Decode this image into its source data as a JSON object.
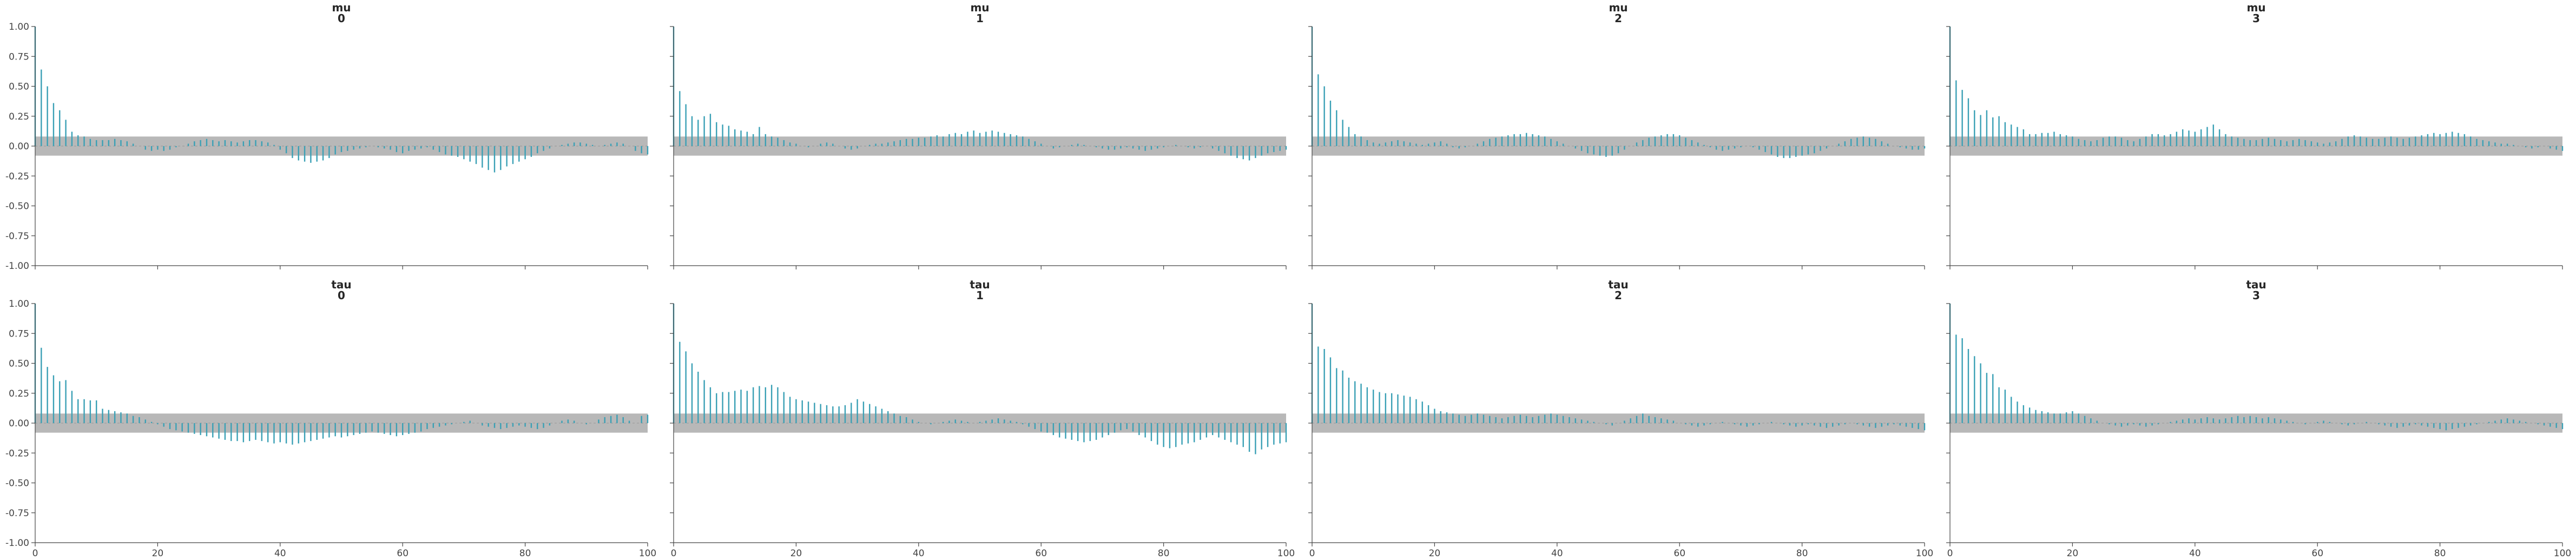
{
  "chart_data": [
    {
      "type": "bar",
      "title_line1": "mu",
      "title_line2": "0",
      "xlim": [
        0,
        100
      ],
      "ylim": [
        -1.0,
        1.0
      ],
      "xticks": [
        "0",
        "20",
        "40",
        "60",
        "80",
        "100"
      ],
      "yticks": [
        "1.00",
        "0.75",
        "0.50",
        "0.25",
        "0.00",
        "-0.25",
        "-0.50",
        "-0.75",
        "-1.00"
      ],
      "show_xticklabels": false,
      "show_yticklabels": true,
      "confidence_band": [
        -0.08,
        0.08
      ],
      "color": "#3aa0b5",
      "values": [
        1.0,
        0.64,
        0.5,
        0.36,
        0.3,
        0.22,
        0.12,
        0.09,
        0.08,
        0.06,
        0.05,
        0.05,
        0.05,
        0.06,
        0.05,
        0.04,
        0.02,
        0.0,
        -0.03,
        -0.04,
        -0.03,
        -0.04,
        -0.03,
        -0.01,
        0.0,
        0.02,
        0.04,
        0.05,
        0.06,
        0.05,
        0.04,
        0.05,
        0.04,
        0.03,
        0.04,
        0.05,
        0.05,
        0.04,
        0.03,
        0.01,
        -0.03,
        -0.06,
        -0.1,
        -0.12,
        -0.13,
        -0.14,
        -0.13,
        -0.12,
        -0.1,
        -0.07,
        -0.05,
        -0.04,
        -0.03,
        -0.02,
        -0.01,
        0.0,
        -0.01,
        -0.02,
        -0.03,
        -0.05,
        -0.06,
        -0.04,
        -0.03,
        -0.02,
        -0.01,
        -0.03,
        -0.05,
        -0.07,
        -0.08,
        -0.09,
        -0.11,
        -0.13,
        -0.15,
        -0.18,
        -0.2,
        -0.22,
        -0.2,
        -0.17,
        -0.15,
        -0.13,
        -0.11,
        -0.09,
        -0.06,
        -0.04,
        -0.02,
        0.0,
        0.01,
        0.02,
        0.03,
        0.03,
        0.02,
        0.01,
        0.0,
        0.01,
        0.02,
        0.03,
        0.02,
        0.0,
        -0.04,
        -0.06,
        -0.07
      ]
    },
    {
      "type": "bar",
      "title_line1": "mu",
      "title_line2": "1",
      "xlim": [
        0,
        100
      ],
      "ylim": [
        -1.0,
        1.0
      ],
      "xticks": [
        "0",
        "20",
        "40",
        "60",
        "80",
        "100"
      ],
      "yticks": [
        "1.00",
        "0.75",
        "0.50",
        "0.25",
        "0.00",
        "-0.25",
        "-0.50",
        "-0.75",
        "-1.00"
      ],
      "show_xticklabels": false,
      "show_yticklabels": false,
      "confidence_band": [
        -0.08,
        0.08
      ],
      "color": "#3aa0b5",
      "values": [
        1.0,
        0.46,
        0.35,
        0.25,
        0.22,
        0.25,
        0.27,
        0.2,
        0.18,
        0.17,
        0.14,
        0.13,
        0.12,
        0.1,
        0.16,
        0.1,
        0.08,
        0.07,
        0.05,
        0.03,
        0.02,
        0.0,
        -0.01,
        0.0,
        0.02,
        0.03,
        0.02,
        0.0,
        -0.02,
        -0.03,
        -0.02,
        0.0,
        0.01,
        0.02,
        0.02,
        0.03,
        0.04,
        0.05,
        0.06,
        0.06,
        0.07,
        0.07,
        0.08,
        0.09,
        0.08,
        0.1,
        0.11,
        0.1,
        0.12,
        0.13,
        0.11,
        0.12,
        0.13,
        0.12,
        0.11,
        0.1,
        0.09,
        0.08,
        0.06,
        0.04,
        0.02,
        0.0,
        -0.02,
        -0.01,
        0.0,
        0.01,
        0.02,
        0.01,
        0.0,
        -0.01,
        -0.02,
        -0.03,
        -0.03,
        -0.02,
        -0.01,
        -0.02,
        -0.03,
        -0.04,
        -0.03,
        -0.02,
        -0.01,
        0.0,
        0.01,
        0.0,
        -0.01,
        -0.02,
        -0.01,
        0.0,
        -0.02,
        -0.04,
        -0.06,
        -0.08,
        -0.1,
        -0.11,
        -0.12,
        -0.1,
        -0.08,
        -0.06,
        -0.05,
        -0.04,
        -0.03
      ]
    },
    {
      "type": "bar",
      "title_line1": "mu",
      "title_line2": "2",
      "xlim": [
        0,
        100
      ],
      "ylim": [
        -1.0,
        1.0
      ],
      "xticks": [
        "0",
        "20",
        "40",
        "60",
        "80",
        "100"
      ],
      "yticks": [
        "1.00",
        "0.75",
        "0.50",
        "0.25",
        "0.00",
        "-0.25",
        "-0.50",
        "-0.75",
        "-1.00"
      ],
      "show_xticklabels": false,
      "show_yticklabels": false,
      "confidence_band": [
        -0.08,
        0.08
      ],
      "color": "#3aa0b5",
      "values": [
        1.0,
        0.6,
        0.5,
        0.38,
        0.3,
        0.22,
        0.16,
        0.1,
        0.08,
        0.05,
        0.03,
        0.02,
        0.03,
        0.04,
        0.05,
        0.04,
        0.03,
        0.02,
        0.01,
        0.02,
        0.03,
        0.04,
        0.02,
        -0.01,
        -0.02,
        -0.01,
        0.0,
        0.02,
        0.04,
        0.06,
        0.07,
        0.08,
        0.09,
        0.1,
        0.1,
        0.11,
        0.1,
        0.09,
        0.08,
        0.06,
        0.04,
        0.02,
        0.0,
        -0.02,
        -0.04,
        -0.06,
        -0.07,
        -0.08,
        -0.09,
        -0.08,
        -0.06,
        -0.03,
        0.0,
        0.03,
        0.05,
        0.07,
        0.08,
        0.09,
        0.1,
        0.1,
        0.09,
        0.07,
        0.05,
        0.03,
        0.01,
        -0.01,
        -0.03,
        -0.04,
        -0.03,
        -0.02,
        -0.01,
        0.0,
        -0.01,
        -0.03,
        -0.05,
        -0.07,
        -0.09,
        -0.1,
        -0.1,
        -0.09,
        -0.08,
        -0.07,
        -0.06,
        -0.04,
        -0.02,
        0.0,
        0.02,
        0.04,
        0.06,
        0.07,
        0.08,
        0.07,
        0.06,
        0.04,
        0.02,
        0.0,
        -0.01,
        -0.02,
        -0.03,
        -0.03,
        -0.02
      ]
    },
    {
      "type": "bar",
      "title_line1": "mu",
      "title_line2": "3",
      "xlim": [
        0,
        100
      ],
      "ylim": [
        -1.0,
        1.0
      ],
      "xticks": [
        "0",
        "20",
        "40",
        "60",
        "80",
        "100"
      ],
      "yticks": [
        "1.00",
        "0.75",
        "0.50",
        "0.25",
        "0.00",
        "-0.25",
        "-0.50",
        "-0.75",
        "-1.00"
      ],
      "show_xticklabels": false,
      "show_yticklabels": false,
      "confidence_band": [
        -0.08,
        0.08
      ],
      "color": "#3aa0b5",
      "values": [
        1.0,
        0.55,
        0.47,
        0.4,
        0.3,
        0.26,
        0.3,
        0.24,
        0.25,
        0.2,
        0.18,
        0.16,
        0.14,
        0.1,
        0.1,
        0.11,
        0.11,
        0.12,
        0.1,
        0.09,
        0.08,
        0.06,
        0.05,
        0.04,
        0.05,
        0.07,
        0.08,
        0.08,
        0.07,
        0.05,
        0.04,
        0.06,
        0.08,
        0.1,
        0.1,
        0.09,
        0.1,
        0.12,
        0.14,
        0.13,
        0.12,
        0.14,
        0.16,
        0.18,
        0.14,
        0.1,
        0.08,
        0.07,
        0.06,
        0.05,
        0.05,
        0.06,
        0.07,
        0.06,
        0.05,
        0.04,
        0.05,
        0.06,
        0.05,
        0.04,
        0.03,
        0.02,
        0.03,
        0.04,
        0.06,
        0.08,
        0.09,
        0.08,
        0.07,
        0.06,
        0.06,
        0.07,
        0.08,
        0.07,
        0.06,
        0.07,
        0.08,
        0.09,
        0.1,
        0.11,
        0.1,
        0.11,
        0.12,
        0.11,
        0.1,
        0.08,
        0.06,
        0.05,
        0.04,
        0.03,
        0.02,
        0.02,
        0.01,
        0.0,
        -0.01,
        -0.02,
        -0.01,
        0.0,
        -0.02,
        -0.03,
        -0.04
      ]
    },
    {
      "type": "bar",
      "title_line1": "tau",
      "title_line2": "0",
      "xlim": [
        0,
        100
      ],
      "ylim": [
        -1.0,
        1.0
      ],
      "xticks": [
        "0",
        "20",
        "40",
        "60",
        "80",
        "100"
      ],
      "yticks": [
        "1.00",
        "0.75",
        "0.50",
        "0.25",
        "0.00",
        "-0.25",
        "-0.50",
        "-0.75",
        "-1.00"
      ],
      "show_xticklabels": true,
      "show_yticklabels": true,
      "confidence_band": [
        -0.08,
        0.08
      ],
      "color": "#3aa0b5",
      "values": [
        1.0,
        0.63,
        0.47,
        0.4,
        0.35,
        0.36,
        0.27,
        0.2,
        0.2,
        0.19,
        0.19,
        0.12,
        0.11,
        0.1,
        0.09,
        0.08,
        0.06,
        0.05,
        0.03,
        0.01,
        -0.01,
        -0.03,
        -0.05,
        -0.06,
        -0.07,
        -0.08,
        -0.09,
        -0.1,
        -0.11,
        -0.12,
        -0.13,
        -0.14,
        -0.15,
        -0.15,
        -0.16,
        -0.15,
        -0.14,
        -0.15,
        -0.16,
        -0.17,
        -0.16,
        -0.17,
        -0.18,
        -0.17,
        -0.16,
        -0.15,
        -0.14,
        -0.13,
        -0.12,
        -0.11,
        -0.12,
        -0.11,
        -0.1,
        -0.09,
        -0.08,
        -0.07,
        -0.08,
        -0.09,
        -0.1,
        -0.11,
        -0.1,
        -0.09,
        -0.08,
        -0.07,
        -0.05,
        -0.04,
        -0.03,
        -0.02,
        -0.01,
        0.0,
        0.01,
        0.02,
        0.0,
        -0.02,
        -0.03,
        -0.04,
        -0.05,
        -0.04,
        -0.03,
        -0.02,
        -0.03,
        -0.04,
        -0.05,
        -0.04,
        -0.02,
        0.0,
        0.02,
        0.03,
        0.02,
        0.0,
        -0.01,
        0.0,
        0.03,
        0.05,
        0.06,
        0.07,
        0.05,
        0.02,
        0.0,
        0.06,
        0.07
      ]
    },
    {
      "type": "bar",
      "title_line1": "tau",
      "title_line2": "1",
      "xlim": [
        0,
        100
      ],
      "ylim": [
        -1.0,
        1.0
      ],
      "xticks": [
        "0",
        "20",
        "40",
        "60",
        "80",
        "100"
      ],
      "yticks": [
        "1.00",
        "0.75",
        "0.50",
        "0.25",
        "0.00",
        "-0.25",
        "-0.50",
        "-0.75",
        "-1.00"
      ],
      "show_xticklabels": true,
      "show_yticklabels": false,
      "confidence_band": [
        -0.08,
        0.08
      ],
      "color": "#3aa0b5",
      "values": [
        1.0,
        0.68,
        0.6,
        0.5,
        0.43,
        0.36,
        0.3,
        0.25,
        0.26,
        0.26,
        0.27,
        0.28,
        0.27,
        0.3,
        0.31,
        0.3,
        0.32,
        0.3,
        0.26,
        0.22,
        0.2,
        0.19,
        0.18,
        0.17,
        0.16,
        0.15,
        0.14,
        0.14,
        0.15,
        0.17,
        0.2,
        0.18,
        0.16,
        0.14,
        0.12,
        0.1,
        0.08,
        0.06,
        0.05,
        0.03,
        0.01,
        0.0,
        -0.01,
        0.0,
        0.01,
        0.02,
        0.03,
        0.02,
        0.01,
        0.0,
        0.01,
        0.02,
        0.03,
        0.04,
        0.03,
        0.02,
        0.01,
        -0.01,
        -0.03,
        -0.05,
        -0.07,
        -0.08,
        -0.1,
        -0.12,
        -0.13,
        -0.14,
        -0.15,
        -0.16,
        -0.15,
        -0.14,
        -0.12,
        -0.1,
        -0.08,
        -0.06,
        -0.05,
        -0.07,
        -0.1,
        -0.12,
        -0.15,
        -0.18,
        -0.2,
        -0.21,
        -0.2,
        -0.18,
        -0.17,
        -0.16,
        -0.14,
        -0.12,
        -0.1,
        -0.12,
        -0.14,
        -0.16,
        -0.18,
        -0.2,
        -0.24,
        -0.26,
        -0.22,
        -0.2,
        -0.18,
        -0.17,
        -0.16
      ]
    },
    {
      "type": "bar",
      "title_line1": "tau",
      "title_line2": "2",
      "xlim": [
        0,
        100
      ],
      "ylim": [
        -1.0,
        1.0
      ],
      "xticks": [
        "0",
        "20",
        "40",
        "60",
        "80",
        "100"
      ],
      "yticks": [
        "1.00",
        "0.75",
        "0.50",
        "0.25",
        "0.00",
        "-0.25",
        "-0.50",
        "-0.75",
        "-1.00"
      ],
      "show_xticklabels": true,
      "show_yticklabels": false,
      "confidence_band": [
        -0.08,
        0.08
      ],
      "color": "#3aa0b5",
      "values": [
        1.0,
        0.64,
        0.62,
        0.55,
        0.46,
        0.44,
        0.38,
        0.35,
        0.33,
        0.3,
        0.28,
        0.26,
        0.25,
        0.25,
        0.24,
        0.23,
        0.22,
        0.2,
        0.18,
        0.15,
        0.12,
        0.1,
        0.09,
        0.08,
        0.07,
        0.06,
        0.07,
        0.08,
        0.07,
        0.06,
        0.05,
        0.04,
        0.05,
        0.06,
        0.07,
        0.06,
        0.05,
        0.06,
        0.07,
        0.08,
        0.07,
        0.06,
        0.05,
        0.04,
        0.03,
        0.02,
        0.01,
        0.0,
        -0.01,
        -0.02,
        0.0,
        0.02,
        0.04,
        0.06,
        0.08,
        0.06,
        0.05,
        0.04,
        0.03,
        0.02,
        0.0,
        -0.01,
        -0.02,
        -0.03,
        -0.02,
        -0.01,
        0.0,
        0.01,
        0.0,
        -0.01,
        -0.02,
        -0.03,
        -0.02,
        -0.01,
        0.0,
        0.01,
        0.0,
        -0.01,
        -0.02,
        -0.03,
        -0.02,
        -0.01,
        -0.02,
        -0.03,
        -0.04,
        -0.03,
        -0.02,
        -0.01,
        0.0,
        -0.01,
        -0.02,
        -0.03,
        -0.04,
        -0.03,
        -0.02,
        -0.01,
        -0.02,
        -0.03,
        -0.04,
        -0.05,
        -0.06
      ]
    },
    {
      "type": "bar",
      "title_line1": "tau",
      "title_line2": "3",
      "xlim": [
        0,
        100
      ],
      "ylim": [
        -1.0,
        1.0
      ],
      "xticks": [
        "0",
        "20",
        "40",
        "60",
        "80",
        "100"
      ],
      "yticks": [
        "1.00",
        "0.75",
        "0.50",
        "0.25",
        "0.00",
        "-0.25",
        "-0.50",
        "-0.75",
        "-1.00"
      ],
      "show_xticklabels": true,
      "show_yticklabels": false,
      "confidence_band": [
        -0.08,
        0.08
      ],
      "color": "#3aa0b5",
      "values": [
        1.0,
        0.74,
        0.71,
        0.62,
        0.56,
        0.5,
        0.42,
        0.41,
        0.3,
        0.28,
        0.22,
        0.18,
        0.15,
        0.13,
        0.11,
        0.1,
        0.09,
        0.08,
        0.08,
        0.09,
        0.1,
        0.08,
        0.06,
        0.04,
        0.02,
        0.0,
        -0.01,
        -0.02,
        -0.03,
        -0.02,
        -0.01,
        -0.02,
        -0.03,
        -0.02,
        -0.01,
        0.0,
        0.01,
        0.02,
        0.03,
        0.04,
        0.03,
        0.04,
        0.05,
        0.04,
        0.03,
        0.04,
        0.05,
        0.06,
        0.05,
        0.06,
        0.05,
        0.04,
        0.05,
        0.04,
        0.03,
        0.02,
        0.01,
        0.0,
        -0.01,
        0.0,
        0.01,
        0.02,
        0.01,
        0.0,
        -0.01,
        -0.02,
        -0.01,
        0.0,
        0.01,
        0.0,
        -0.01,
        -0.02,
        -0.03,
        -0.04,
        -0.03,
        -0.02,
        -0.01,
        -0.02,
        -0.03,
        -0.04,
        -0.05,
        -0.06,
        -0.05,
        -0.04,
        -0.03,
        -0.02,
        -0.01,
        0.0,
        0.01,
        0.02,
        0.03,
        0.04,
        0.03,
        0.02,
        0.01,
        0.0,
        -0.01,
        -0.02,
        -0.03,
        -0.04,
        -0.05
      ]
    }
  ]
}
